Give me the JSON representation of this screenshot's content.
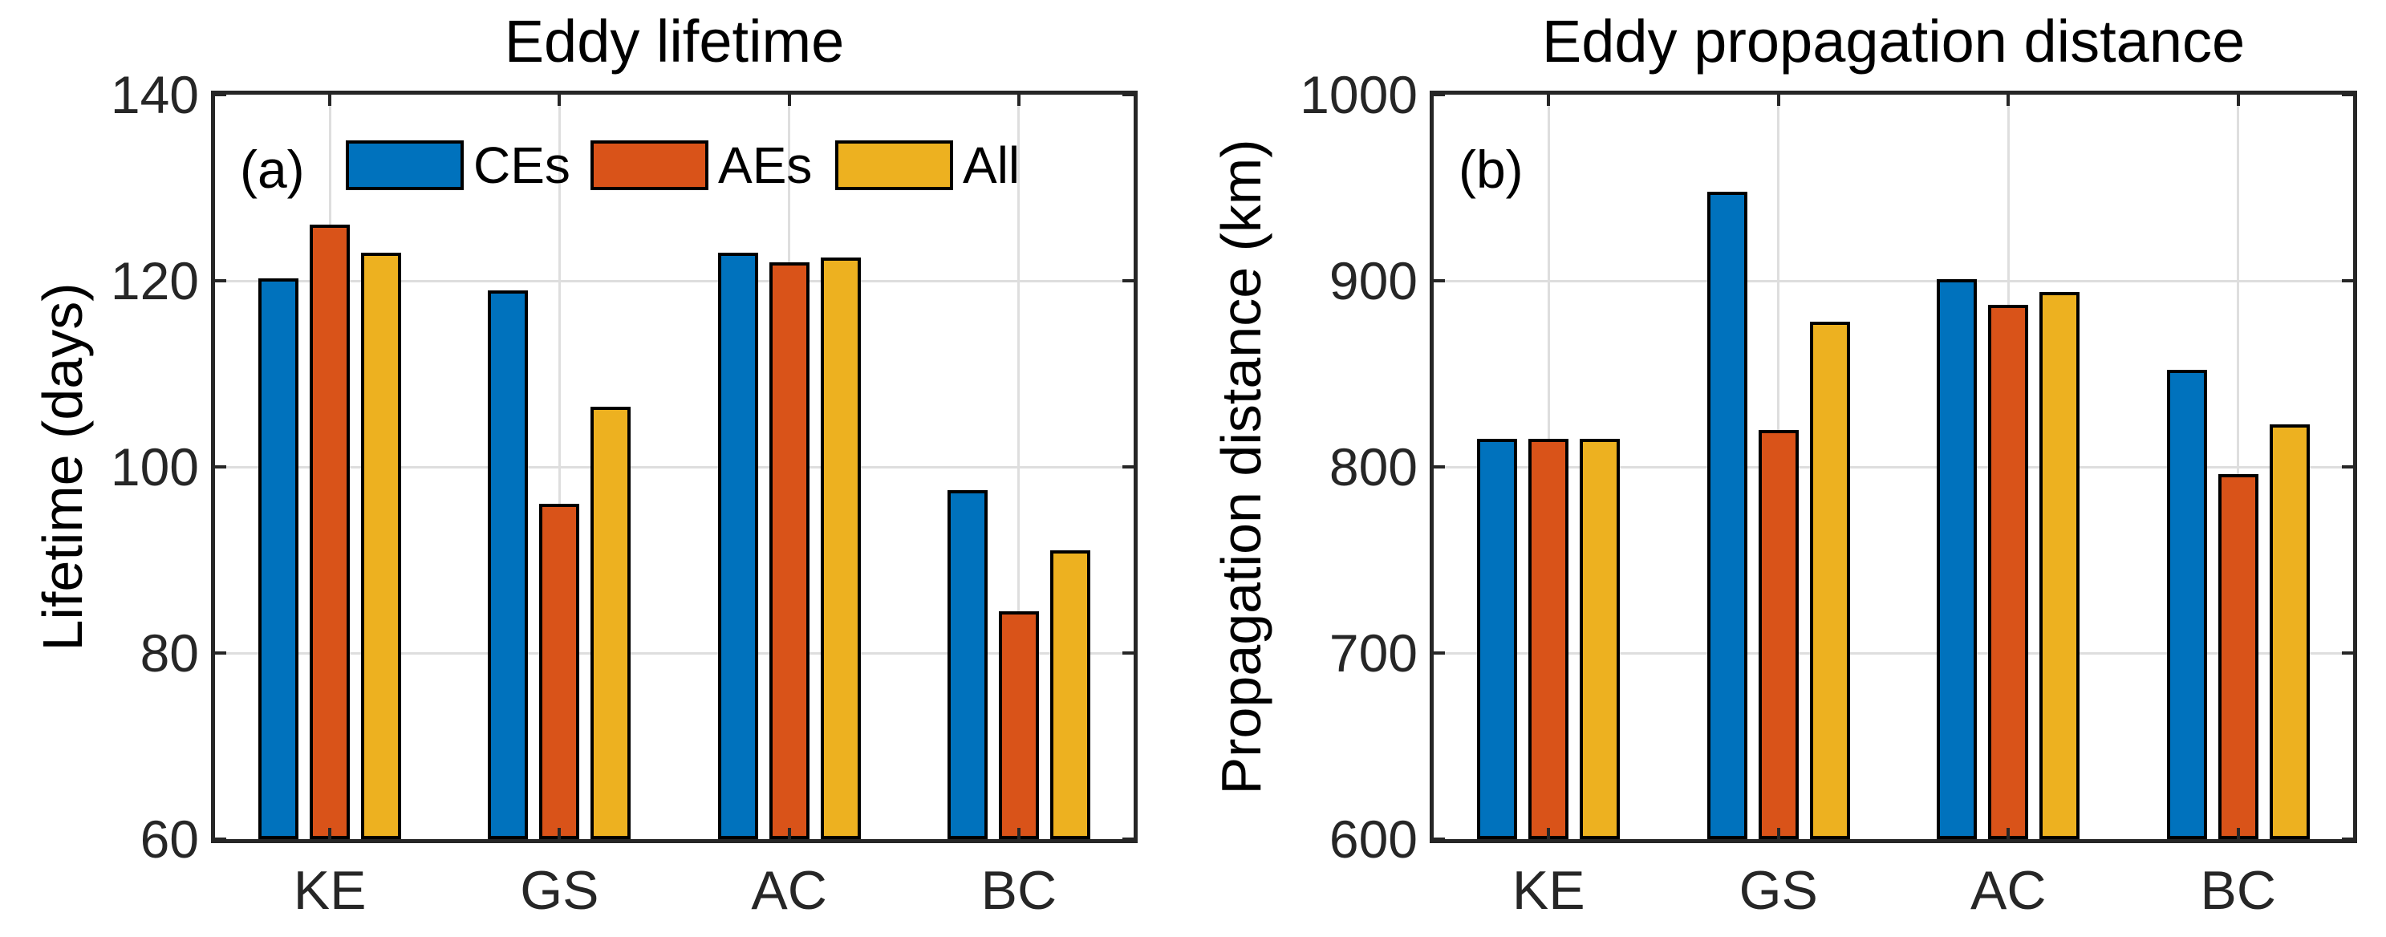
{
  "figure": {
    "background": "#ffffff",
    "axis_color": "#262626",
    "grid_color": "#DEDEDE",
    "bar_edge_color": "#000000"
  },
  "chart_data": [
    {
      "type": "bar",
      "letter": "(a)",
      "title": "Eddy lifetime",
      "xlabel": "",
      "ylabel": "Lifetime (days)",
      "categories": [
        "KE",
        "GS",
        "AC",
        "BC"
      ],
      "ylim": [
        60,
        140
      ],
      "yticks": [
        60,
        80,
        100,
        120,
        140
      ],
      "grid": "on",
      "legend_position": "top-inside-horizontal",
      "show_legend": true,
      "series": [
        {
          "name": "CEs",
          "color": "#0072BD",
          "values": [
            120.3,
            119.0,
            123.0,
            97.5
          ]
        },
        {
          "name": "AEs",
          "color": "#D95319",
          "values": [
            126.0,
            96.0,
            122.0,
            84.5
          ]
        },
        {
          "name": "All",
          "color": "#EDB120",
          "values": [
            123.0,
            106.5,
            122.5,
            91.0
          ]
        }
      ]
    },
    {
      "type": "bar",
      "letter": "(b)",
      "title": "Eddy propagation distance",
      "xlabel": "",
      "ylabel": "Propagation distance (km)",
      "categories": [
        "KE",
        "GS",
        "AC",
        "BC"
      ],
      "ylim": [
        600,
        1000
      ],
      "yticks": [
        600,
        700,
        800,
        900,
        1000
      ],
      "grid": "on",
      "legend_position": "none",
      "show_legend": false,
      "series": [
        {
          "name": "CEs",
          "color": "#0072BD",
          "values": [
            815,
            948,
            901,
            852
          ]
        },
        {
          "name": "AEs",
          "color": "#D95319",
          "values": [
            815,
            820,
            887,
            796
          ]
        },
        {
          "name": "All",
          "color": "#EDB120",
          "values": [
            815,
            878,
            894,
            823
          ]
        }
      ]
    }
  ]
}
